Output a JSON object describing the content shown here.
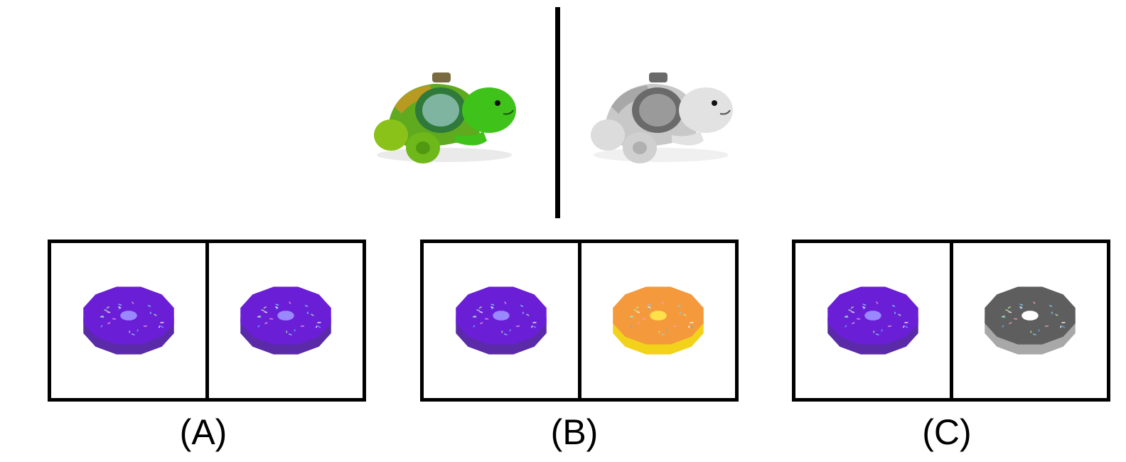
{
  "reference": {
    "left_image": "turtle-toy-color",
    "right_image": "turtle-toy-grayscale"
  },
  "options": [
    {
      "label": "(A)",
      "left_donut": "purple",
      "right_donut": "purple"
    },
    {
      "label": "(B)",
      "left_donut": "purple",
      "right_donut": "orange"
    },
    {
      "label": "(C)",
      "left_donut": "purple",
      "right_donut": "gray"
    }
  ],
  "colors": {
    "purple": {
      "top": "#6a1fd6",
      "side": "#5a2aa8",
      "hole": "#9a88ff"
    },
    "orange": {
      "top": "#f49a3c",
      "side": "#f2d21a",
      "hole": "#ffe24a"
    },
    "gray": {
      "top": "#5e5e5e",
      "side": "#a8a8a8",
      "hole": "#ffffff"
    }
  }
}
